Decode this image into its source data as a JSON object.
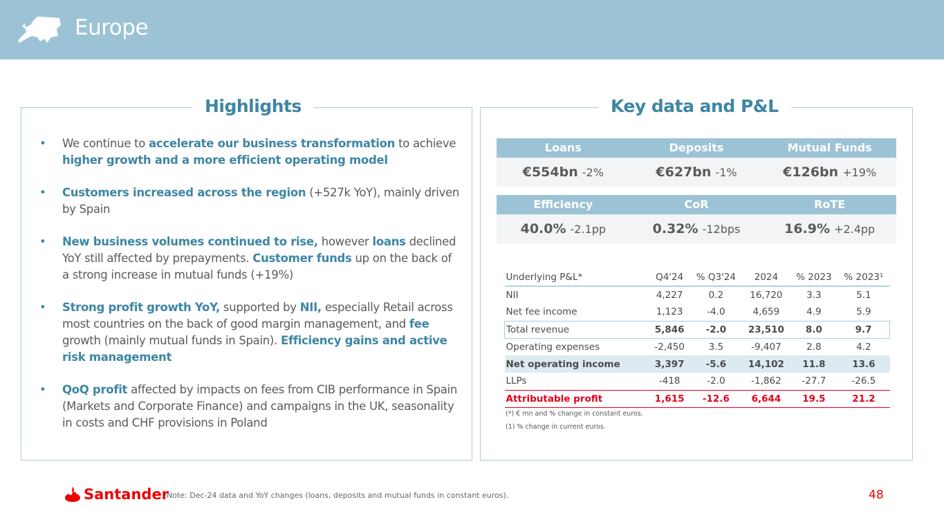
{
  "header": {
    "title": "Europe"
  },
  "highlights": {
    "title": "Highlights",
    "bullets": [
      [
        {
          "t": "We continue to "
        },
        {
          "t": "accelerate our business transformation",
          "b": true
        },
        {
          "t": " to achieve "
        },
        {
          "t": "higher growth and a more efficient operating model",
          "b": true
        }
      ],
      [
        {
          "t": "Customers increased across the region",
          "b": true
        },
        {
          "t": " (+527k YoY), mainly driven by Spain"
        }
      ],
      [
        {
          "t": "New business volumes continued to rise,",
          "b": true
        },
        {
          "t": " however "
        },
        {
          "t": "loans",
          "b": true
        },
        {
          "t": " declined YoY still affected by prepayments. "
        },
        {
          "t": "Customer funds",
          "b": true
        },
        {
          "t": " up on the back of a strong increase in mutual funds (+19%)"
        }
      ],
      [
        {
          "t": "Strong profit growth YoY,",
          "b": true
        },
        {
          "t": " supported by "
        },
        {
          "t": "NII,",
          "b": true
        },
        {
          "t": " especially Retail across most countries on the back of good margin management, and "
        },
        {
          "t": "fee",
          "b": true
        },
        {
          "t": " growth (mainly mutual funds in Spain). "
        },
        {
          "t": "Efficiency gains and active risk management",
          "b": true
        }
      ],
      [
        {
          "t": "QoQ profit",
          "b": true
        },
        {
          "t": " affected by impacts on fees from CIB performance in Spain (Markets and Corporate Finance) and campaigns in the UK, seasonality in costs and CHF provisions in Poland"
        }
      ]
    ]
  },
  "keydata": {
    "title": "Key data and P&L",
    "row1": [
      {
        "label": "Loans",
        "value": "€554bn",
        "change": "-2%"
      },
      {
        "label": "Deposits",
        "value": "€627bn",
        "change": "-1%"
      },
      {
        "label": "Mutual Funds",
        "value": "€126bn",
        "change": "+19%"
      }
    ],
    "row2": [
      {
        "label": "Efficiency",
        "value": "40.0%",
        "change": "-2.1pp"
      },
      {
        "label": "CoR",
        "value": "0.32%",
        "change": "-12bps"
      },
      {
        "label": "RoTE",
        "value": "16.9%",
        "change": "+2.4pp"
      }
    ]
  },
  "pl": {
    "headers": [
      "Underlying P&L*",
      "Q4'24",
      "% Q3'24",
      "2024",
      "% 2023",
      "% 2023¹"
    ],
    "rows": [
      {
        "c": [
          "NII",
          "4,227",
          "0.2",
          "16,720",
          "3.3",
          "5.1"
        ]
      },
      {
        "c": [
          "Net fee income",
          "1,123",
          "-4.0",
          "4,659",
          "4.9",
          "5.9"
        ]
      },
      {
        "c": [
          "Total revenue",
          "5,846",
          "-2.0",
          "23,510",
          "8.0",
          "9.7"
        ],
        "s": "tot"
      },
      {
        "c": [
          "Operating expenses",
          "-2,450",
          "3.5",
          "-9,407",
          "2.8",
          "4.2"
        ]
      },
      {
        "c": [
          "Net operating income",
          "3,397",
          "-5.6",
          "14,102",
          "11.8",
          "13.6"
        ],
        "s": "noi"
      },
      {
        "c": [
          "LLPs",
          "-418",
          "-2.0",
          "-1,862",
          "-27.7",
          "-26.5"
        ]
      },
      {
        "c": [
          "Attributable profit",
          "1,615",
          "-12.6",
          "6,644",
          "19.5",
          "21.2"
        ],
        "s": "ap"
      }
    ],
    "footnote1": "(*) € mn and % change in constant euros.",
    "footnote2": "(1)  % change in current euros."
  },
  "footer": {
    "brand": "Santander",
    "note": "Note: Dec-24 data and YoY changes (loans, deposits and mutual funds in constant euros).",
    "page": "48"
  },
  "colors": {
    "header": "#9cc3d5",
    "accent": "#3e86a4",
    "red": "#ec0000"
  }
}
